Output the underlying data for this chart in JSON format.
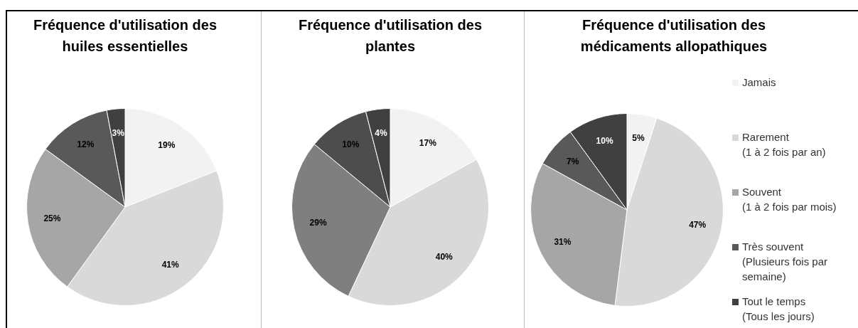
{
  "chart_data": [
    {
      "type": "pie",
      "title": "Fréquence d'utilisation des huiles essentielles",
      "categories": [
        null,
        null,
        null,
        null,
        null
      ],
      "values": [
        19,
        41,
        25,
        12,
        3
      ],
      "value_labels": [
        "19%",
        "41%",
        "25%",
        "12%",
        "3%"
      ],
      "colors": [
        "#f2f2f2",
        "#d9d9d9",
        "#a6a6a6",
        "#595959",
        "#404040"
      ],
      "legend": false
    },
    {
      "type": "pie",
      "title": "Fréquence d'utilisation des plantes",
      "categories": [
        null,
        null,
        null,
        null,
        null
      ],
      "values": [
        17,
        40,
        29,
        10,
        4
      ],
      "value_labels": [
        "17%",
        "40%",
        "29%",
        "10%",
        "4%"
      ],
      "colors": [
        "#f2f2f2",
        "#d9d9d9",
        "#7f7f7f",
        "#4d4d4d",
        "#404040"
      ],
      "legend": false
    },
    {
      "type": "pie",
      "title": "Fréquence d'utilisation des médicaments allopathiques",
      "categories": [
        "Jamais",
        "Rarement\n(1 à 2 fois par an)",
        "Souvent\n(1 à 2 fois par mois)",
        "Très souvent\n(Plusieurs fois par semaine)",
        "Tout le temps\n(Tous les jours)"
      ],
      "values": [
        5,
        47,
        31,
        7,
        10
      ],
      "value_labels": [
        "5%",
        "47%",
        "31%",
        "7%",
        "10%"
      ],
      "colors": [
        "#f2f2f2",
        "#d9d9d9",
        "#a6a6a6",
        "#595959",
        "#404040"
      ],
      "legend": "right"
    }
  ]
}
